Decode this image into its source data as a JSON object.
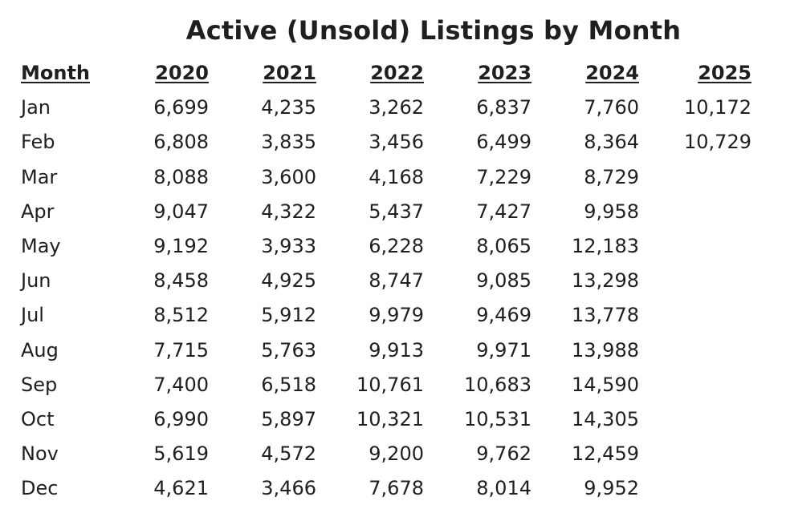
{
  "chart_data": {
    "type": "table",
    "title": "Active (Unsold) Listings by Month",
    "columns": [
      "Month",
      "2020",
      "2021",
      "2022",
      "2023",
      "2024",
      "2025"
    ],
    "rows": [
      [
        "Jan",
        "6,699",
        "4,235",
        "3,262",
        "6,837",
        "7,760",
        "10,172"
      ],
      [
        "Feb",
        "6,808",
        "3,835",
        "3,456",
        "6,499",
        "8,364",
        "10,729"
      ],
      [
        "Mar",
        "8,088",
        "3,600",
        "4,168",
        "7,229",
        "8,729",
        ""
      ],
      [
        "Apr",
        "9,047",
        "4,322",
        "5,437",
        "7,427",
        "9,958",
        ""
      ],
      [
        "May",
        "9,192",
        "3,933",
        "6,228",
        "8,065",
        "12,183",
        ""
      ],
      [
        "Jun",
        "8,458",
        "4,925",
        "8,747",
        "9,085",
        "13,298",
        ""
      ],
      [
        "Jul",
        "8,512",
        "5,912",
        "9,979",
        "9,469",
        "13,778",
        ""
      ],
      [
        "Aug",
        "7,715",
        "5,763",
        "9,913",
        "9,971",
        "13,988",
        ""
      ],
      [
        "Sep",
        "7,400",
        "6,518",
        "10,761",
        "10,683",
        "14,590",
        ""
      ],
      [
        "Oct",
        "6,990",
        "5,897",
        "10,321",
        "10,531",
        "14,305",
        ""
      ],
      [
        "Nov",
        "5,619",
        "4,572",
        "9,200",
        "9,762",
        "12,459",
        ""
      ],
      [
        "Dec",
        "4,621",
        "3,466",
        "7,678",
        "8,014",
        "9,952",
        ""
      ]
    ]
  }
}
